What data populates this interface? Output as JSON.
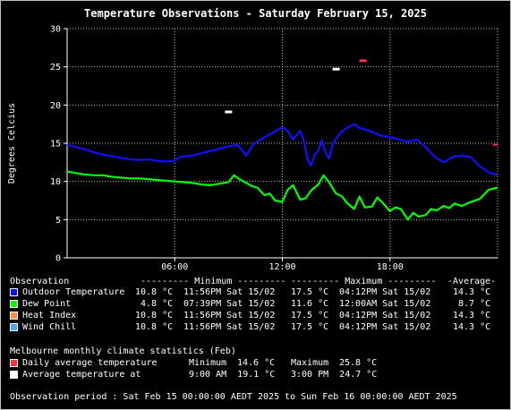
{
  "chart_data": {
    "type": "line",
    "title": "Temperature Observations - Saturday February 15, 2025",
    "ylabel": "Degrees Celcius",
    "xlabel": "",
    "xlim": [
      0,
      24
    ],
    "ylim": [
      0,
      30
    ],
    "yticks": [
      0,
      5,
      10,
      15,
      20,
      25,
      30
    ],
    "xticks": [
      {
        "x": 6,
        "label": "06:00"
      },
      {
        "x": 12,
        "label": "12:00"
      },
      {
        "x": 18,
        "label": "18:00"
      }
    ],
    "grid": true,
    "series": [
      {
        "name": "Outdoor Temperature",
        "color": "#1010ff",
        "x": [
          0,
          0.5,
          1,
          1.5,
          2,
          2.5,
          3,
          3.5,
          4,
          4.5,
          5,
          5.5,
          6,
          6.3,
          6.6,
          7,
          7.5,
          8,
          8.5,
          9,
          9.5,
          10,
          10.3,
          10.6,
          11,
          11.5,
          12,
          12.3,
          12.6,
          13,
          13.2,
          13.4,
          13.6,
          13.8,
          14,
          14.2,
          14.4,
          14.6,
          14.8,
          15,
          15.3,
          15.6,
          16,
          16.3,
          16.6,
          17,
          17.5,
          18,
          18.5,
          19,
          19.5,
          20,
          20.5,
          21,
          21.5,
          22,
          22.5,
          23,
          23.5,
          24
        ],
        "y": [
          14.8,
          14.5,
          14.2,
          13.8,
          13.5,
          13.3,
          13.1,
          12.9,
          12.8,
          12.9,
          12.7,
          12.6,
          12.7,
          13.2,
          13.3,
          13.4,
          13.7,
          14.0,
          14.3,
          14.6,
          14.8,
          13.4,
          14.6,
          15.2,
          15.8,
          16.4,
          17.1,
          16.6,
          15.5,
          16.6,
          15.3,
          12.9,
          12.1,
          13.5,
          14.0,
          15.4,
          13.8,
          13.0,
          14.8,
          15.6,
          16.5,
          17.0,
          17.5,
          17.0,
          16.8,
          16.5,
          16.0,
          15.8,
          15.5,
          15.2,
          15.5,
          14.5,
          13.2,
          12.5,
          13.2,
          13.4,
          13.2,
          12.0,
          11.2,
          10.8
        ]
      },
      {
        "name": "Dew Point",
        "color": "#00ff00",
        "x": [
          0,
          0.5,
          1,
          1.5,
          2,
          2.5,
          3,
          3.5,
          4,
          4.5,
          5,
          5.5,
          6,
          6.5,
          7,
          7.5,
          8,
          8.5,
          9,
          9.3,
          9.6,
          10,
          10.3,
          10.6,
          11,
          11.3,
          11.6,
          12,
          12.3,
          12.6,
          13,
          13.3,
          13.6,
          14,
          14.3,
          14.6,
          15,
          15.3,
          15.6,
          16,
          16.3,
          16.6,
          17,
          17.3,
          17.6,
          18,
          18.3,
          18.6,
          19,
          19.3,
          19.6,
          20,
          20.3,
          20.6,
          21,
          21.3,
          21.6,
          22,
          22.5,
          23,
          23.5,
          24
        ],
        "y": [
          11.3,
          11.1,
          10.9,
          10.8,
          10.8,
          10.6,
          10.5,
          10.4,
          10.4,
          10.3,
          10.2,
          10.1,
          10.0,
          9.9,
          9.8,
          9.6,
          9.5,
          9.7,
          9.9,
          10.8,
          10.3,
          9.8,
          9.4,
          9.2,
          8.2,
          8.4,
          7.5,
          7.3,
          8.9,
          9.5,
          7.6,
          7.8,
          8.8,
          9.6,
          10.8,
          9.9,
          8.4,
          8.1,
          7.2,
          6.4,
          8.0,
          6.6,
          6.7,
          7.9,
          7.2,
          6.1,
          6.6,
          6.4,
          5.0,
          5.9,
          5.4,
          5.6,
          6.4,
          6.2,
          6.8,
          6.5,
          7.1,
          6.8,
          7.3,
          7.7,
          8.9,
          9.2
        ]
      },
      {
        "name": "Heat Index",
        "color": "#ff8c40"
      },
      {
        "name": "Wind Chill",
        "color": "#40a8ff"
      }
    ],
    "monthly_markers": [
      {
        "name": "Daily average temperature",
        "color": "#ff3040",
        "x": [
          16.5
        ],
        "y": [
          25.8
        ]
      },
      {
        "name": "Average temperature at",
        "color": "#ffffff",
        "x": [
          9,
          15
        ],
        "y": [
          19.1,
          24.7
        ]
      }
    ]
  },
  "colors": {
    "axis": "#ffffff",
    "grid": "#c8c850",
    "background": "#000000",
    "frame": "#c0c0c0"
  },
  "stats": {
    "headers": {
      "observation": "Observation",
      "minimum": "--------- Minimum ---------",
      "maximum": "--------- Maximum ---------",
      "average": "-Average-"
    },
    "rows": [
      {
        "label": "Outdoor Temperature",
        "color": "#1010ff",
        "min": "10.8 °C",
        "min_time": "11:56PM Sat 15/02",
        "max": "17.5 °C",
        "max_time": "04:12PM Sat 15/02",
        "avg": "14.3 °C"
      },
      {
        "label": "Dew Point",
        "color": "#00ff00",
        "min": "4.8 °C",
        "min_time": "07:39PM Sat 15/02",
        "max": "11.6 °C",
        "max_time": "12:00AM Sat 15/02",
        "avg": "8.7 °C"
      },
      {
        "label": "Heat Index",
        "color": "#ff8c40",
        "min": "10.8 °C",
        "min_time": "11:56PM Sat 15/02",
        "max": "17.5 °C",
        "max_time": "04:12PM Sat 15/02",
        "avg": "14.3 °C"
      },
      {
        "label": "Wind Chill",
        "color": "#40a8ff",
        "min": "10.8 °C",
        "min_time": "11:56PM Sat 15/02",
        "max": "17.5 °C",
        "max_time": "04:12PM Sat 15/02",
        "avg": "14.3 °C"
      }
    ]
  },
  "climate": {
    "heading": "Melbourne monthly climate statistics (Feb)",
    "daily_avg_label": "Daily average temperature",
    "daily_avg_color": "#ff3040",
    "daily_min_label": "Minimum",
    "daily_min": "14.6 °C",
    "daily_max_label": "Maximum",
    "daily_max": "25.8 °C",
    "avg_at_label": "Average temperature at",
    "avg_at_color": "#ffffff",
    "avg_at_1": "9:00 AM  19.1 °C",
    "avg_at_2": "3:00 PM  24.7 °C"
  },
  "period": "Observation period : Sat Feb 15 00:00:00 AEDT 2025 to Sun Feb 16 00:00:00 AEDT 2025"
}
